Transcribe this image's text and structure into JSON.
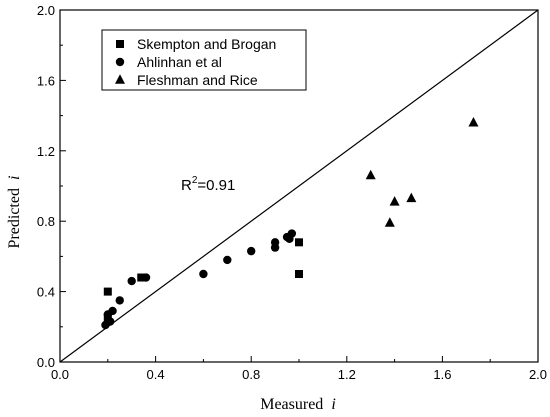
{
  "chart_data": {
    "type": "scatter",
    "title": "",
    "xlabel": "Measured",
    "xlabel_symbol": "i",
    "ylabel": "Predicted",
    "ylabel_symbol": "i",
    "xlim": [
      0.0,
      2.0
    ],
    "ylim": [
      0.0,
      2.0
    ],
    "xticks": [
      "0.0",
      "0.4",
      "0.8",
      "1.2",
      "1.6",
      "2.0"
    ],
    "yticks": [
      "0.0",
      "0.4",
      "0.8",
      "1.2",
      "1.6",
      "2.0"
    ],
    "xtick_values": [
      0.0,
      0.4,
      0.8,
      1.2,
      1.6,
      2.0
    ],
    "ytick_values": [
      0.0,
      0.4,
      0.8,
      1.2,
      1.6,
      2.0
    ],
    "grid": false,
    "legend_position": "top-left",
    "reference_line": {
      "kind": "1:1 line",
      "from": [
        0,
        0
      ],
      "to": [
        2,
        2
      ]
    },
    "annotation": {
      "base": "R",
      "sup": "2",
      "rest": "=0.91",
      "x": 1.0,
      "y": 1.01
    },
    "series": [
      {
        "name": "Skempton and Brogan",
        "marker": "square",
        "points": [
          [
            0.2,
            0.4
          ],
          [
            0.2,
            0.25
          ],
          [
            0.34,
            0.48
          ],
          [
            1.0,
            0.68
          ],
          [
            1.0,
            0.5
          ]
        ]
      },
      {
        "name": "Ahlinhan et al",
        "marker": "circle",
        "points": [
          [
            0.19,
            0.21
          ],
          [
            0.2,
            0.27
          ],
          [
            0.21,
            0.23
          ],
          [
            0.22,
            0.29
          ],
          [
            0.25,
            0.35
          ],
          [
            0.3,
            0.46
          ],
          [
            0.36,
            0.48
          ],
          [
            0.6,
            0.5
          ],
          [
            0.7,
            0.58
          ],
          [
            0.8,
            0.63
          ],
          [
            0.9,
            0.68
          ],
          [
            0.9,
            0.65
          ],
          [
            0.95,
            0.71
          ],
          [
            0.96,
            0.7
          ],
          [
            0.97,
            0.73
          ]
        ]
      },
      {
        "name": "Fleshman and Rice",
        "marker": "triangle",
        "points": [
          [
            1.3,
            1.06
          ],
          [
            1.38,
            0.79
          ],
          [
            1.4,
            0.91
          ],
          [
            1.47,
            0.93
          ],
          [
            1.73,
            1.36
          ]
        ]
      }
    ]
  }
}
